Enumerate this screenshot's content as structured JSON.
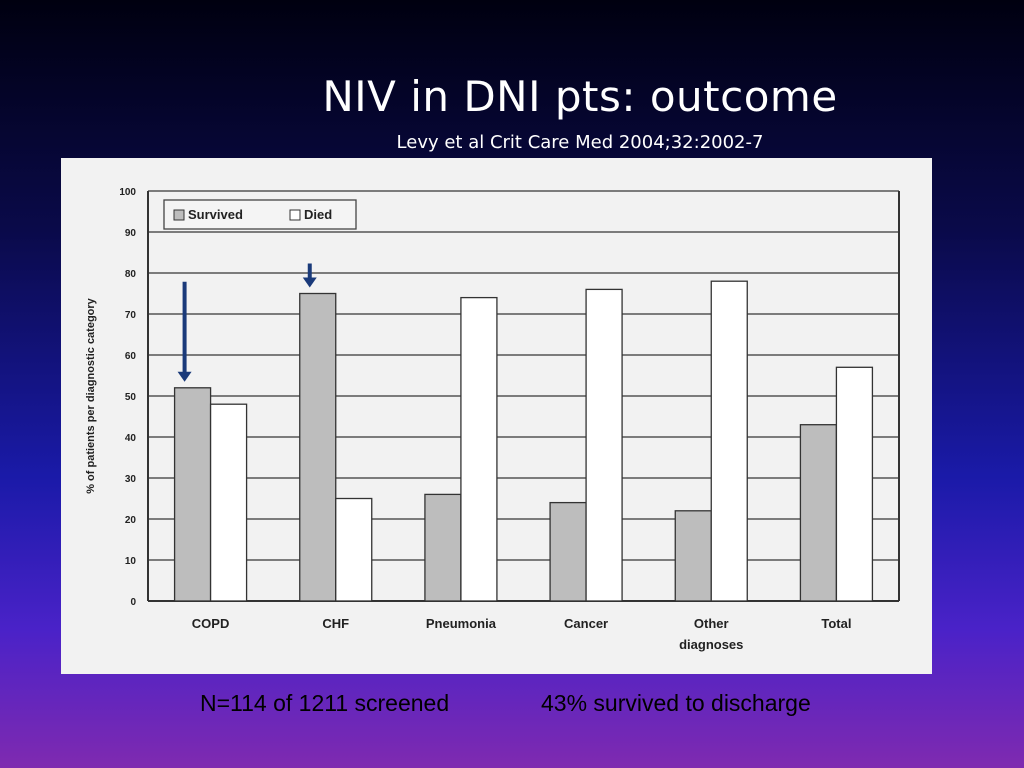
{
  "slide": {
    "title": "NIV in DNI pts: outcome",
    "subtitle": "Levy et al Crit Care Med 2004;32:2002-7",
    "footer_left": "N=114 of 1211 screened",
    "footer_right": "43% survived to discharge"
  },
  "chart_data": {
    "type": "bar",
    "categories": [
      "COPD",
      "CHF",
      "Pneumonia",
      "Cancer",
      "Other diagnoses",
      "Total"
    ],
    "series": [
      {
        "name": "Survived",
        "values": [
          52,
          75,
          26,
          24,
          22,
          43
        ],
        "color": "#bdbdbd"
      },
      {
        "name": "Died",
        "values": [
          48,
          25,
          74,
          76,
          78,
          57
        ],
        "color": "#ffffff"
      }
    ],
    "ylabel": "% of patients per diagnostic category",
    "xlabel": "",
    "ylim": [
      0,
      100
    ],
    "yticks": [
      0,
      10,
      20,
      30,
      40,
      50,
      60,
      70,
      80,
      90,
      100
    ],
    "grid": true,
    "legend": "top-left",
    "annotations": [
      {
        "type": "arrow",
        "category": "COPD",
        "series": "Survived",
        "color": "#1a3a7a"
      },
      {
        "type": "arrow",
        "category": "CHF",
        "series": "Survived",
        "color": "#1a3a7a"
      }
    ]
  }
}
